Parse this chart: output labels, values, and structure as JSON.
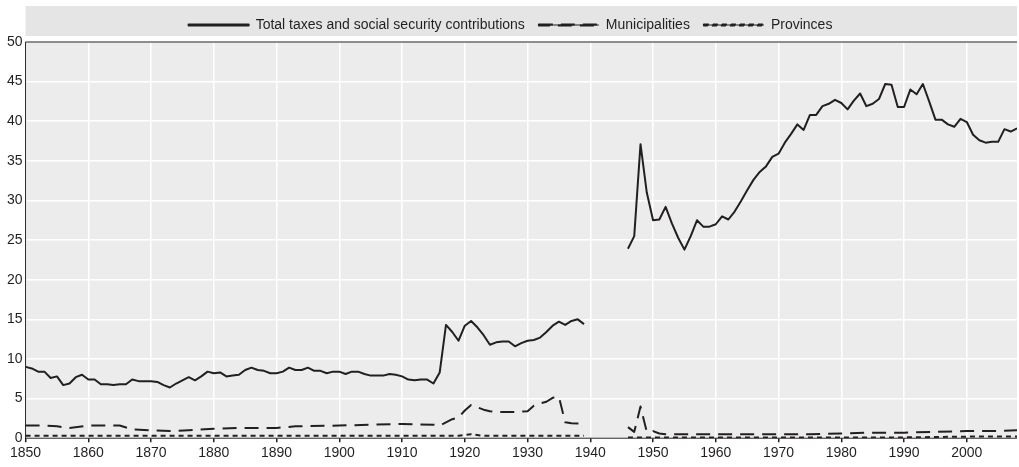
{
  "chart_data": {
    "type": "line",
    "legend": "top",
    "grid": true,
    "xlim": [
      1850,
      2008
    ],
    "xticks": [
      1850,
      1860,
      1870,
      1880,
      1890,
      1900,
      1910,
      1920,
      1930,
      1940,
      1950,
      1960,
      1970,
      1980,
      1990,
      2000
    ],
    "ylim": [
      0,
      50
    ],
    "yticks": [
      0,
      5,
      10,
      15,
      20,
      25,
      30,
      35,
      40,
      45,
      50
    ],
    "x": [
      1850,
      1851,
      1852,
      1853,
      1854,
      1855,
      1856,
      1857,
      1858,
      1859,
      1860,
      1861,
      1862,
      1863,
      1864,
      1865,
      1866,
      1867,
      1868,
      1869,
      1870,
      1871,
      1872,
      1873,
      1874,
      1875,
      1876,
      1877,
      1878,
      1879,
      1880,
      1881,
      1882,
      1883,
      1884,
      1885,
      1886,
      1887,
      1888,
      1889,
      1890,
      1891,
      1892,
      1893,
      1894,
      1895,
      1896,
      1897,
      1898,
      1899,
      1900,
      1901,
      1902,
      1903,
      1904,
      1905,
      1906,
      1907,
      1908,
      1909,
      1910,
      1911,
      1912,
      1913,
      1914,
      1915,
      1916,
      1917,
      1918,
      1919,
      1920,
      1921,
      1922,
      1923,
      1924,
      1925,
      1926,
      1927,
      1928,
      1929,
      1930,
      1931,
      1932,
      1933,
      1934,
      1935,
      1936,
      1937,
      1938,
      1939,
      1940,
      1941,
      1942,
      1943,
      1944,
      1945,
      1946,
      1947,
      1948,
      1949,
      1950,
      1951,
      1952,
      1953,
      1954,
      1955,
      1956,
      1957,
      1958,
      1959,
      1960,
      1961,
      1962,
      1963,
      1964,
      1965,
      1966,
      1967,
      1968,
      1969,
      1970,
      1971,
      1972,
      1973,
      1974,
      1975,
      1976,
      1977,
      1978,
      1979,
      1980,
      1981,
      1982,
      1983,
      1984,
      1985,
      1986,
      1987,
      1988,
      1989,
      1990,
      1991,
      1992,
      1993,
      1994,
      1995,
      1996,
      1997,
      1998,
      1999,
      2000,
      2001,
      2002,
      2003,
      2004,
      2005,
      2006,
      2007,
      2008
    ],
    "series": [
      {
        "name": "Total taxes and social security contributions",
        "color": "#231f20",
        "line_style": "solid",
        "values": [
          9.0,
          8.8,
          8.4,
          8.4,
          7.6,
          7.8,
          6.7,
          6.9,
          7.7,
          8.0,
          7.4,
          7.4,
          6.8,
          6.8,
          6.7,
          6.8,
          6.8,
          7.4,
          7.2,
          7.2,
          7.2,
          7.1,
          6.7,
          6.4,
          6.9,
          7.3,
          7.7,
          7.3,
          7.8,
          8.4,
          8.2,
          8.3,
          7.8,
          7.9,
          8.0,
          8.6,
          8.9,
          8.6,
          8.5,
          8.2,
          8.2,
          8.4,
          8.9,
          8.6,
          8.6,
          8.9,
          8.5,
          8.5,
          8.2,
          8.4,
          8.4,
          8.1,
          8.4,
          8.4,
          8.1,
          7.9,
          7.9,
          7.9,
          8.1,
          8.0,
          7.8,
          7.4,
          7.3,
          7.4,
          7.4,
          6.9,
          8.3,
          14.3,
          13.4,
          12.3,
          14.2,
          14.8,
          14.0,
          13.0,
          11.8,
          12.1,
          12.2,
          12.2,
          11.6,
          12.0,
          12.3,
          12.4,
          12.7,
          13.4,
          14.2,
          14.7,
          14.3,
          14.8,
          15.0,
          14.4,
          null,
          null,
          null,
          null,
          null,
          null,
          23.9,
          25.5,
          37.1,
          31.0,
          27.5,
          27.6,
          29.2,
          27.1,
          25.3,
          23.8,
          25.5,
          27.5,
          26.7,
          26.7,
          27.0,
          28.0,
          27.6,
          28.6,
          29.9,
          31.3,
          32.6,
          33.6,
          34.3,
          35.5,
          35.9,
          37.3,
          38.4,
          39.6,
          38.9,
          40.8,
          40.8,
          41.9,
          42.2,
          42.7,
          42.3,
          41.5,
          42.6,
          43.5,
          41.9,
          42.2,
          42.8,
          44.7,
          44.6,
          41.8,
          41.8,
          44.0,
          43.4,
          44.7,
          42.5,
          40.2,
          40.2,
          39.6,
          39.3,
          40.3,
          39.9,
          38.3,
          37.6,
          37.3,
          37.4,
          37.4,
          39.0,
          38.7,
          39.1
        ]
      },
      {
        "name": "Municipalities",
        "color": "#231f20",
        "line_style": "dashed",
        "x": [
          1850,
          1853,
          1855,
          1857,
          1860,
          1865,
          1867,
          1870,
          1873,
          1876,
          1880,
          1885,
          1890,
          1893,
          1900,
          1905,
          1910,
          1915,
          1916,
          1917,
          1918,
          1919,
          1920,
          1921,
          1922,
          1923,
          1924,
          1925,
          1928,
          1930,
          1931,
          1932,
          1933,
          1934,
          1935,
          1936,
          1937,
          1939,
          1940,
          1941,
          1942,
          1943,
          1944,
          1945,
          1946,
          1947,
          1948,
          1949,
          1950,
          1951,
          1952,
          1955,
          1960,
          1965,
          1970,
          1975,
          1980,
          1985,
          1990,
          1995,
          2000,
          2005,
          2008
        ],
        "values": [
          1.6,
          1.6,
          1.5,
          1.3,
          1.6,
          1.6,
          1.1,
          1.0,
          0.9,
          1.0,
          1.2,
          1.3,
          1.3,
          1.5,
          1.6,
          1.7,
          1.8,
          1.7,
          1.6,
          2.0,
          2.4,
          2.6,
          3.5,
          4.2,
          3.9,
          3.6,
          3.4,
          3.3,
          3.3,
          3.4,
          4.1,
          4.4,
          4.6,
          5.1,
          5.2,
          2.0,
          1.9,
          1.8,
          null,
          null,
          null,
          null,
          null,
          null,
          1.4,
          0.8,
          4.0,
          0.8,
          0.9,
          0.6,
          0.5,
          0.5,
          0.5,
          0.5,
          0.5,
          0.5,
          0.6,
          0.7,
          0.7,
          0.8,
          0.9,
          0.9,
          1.0
        ]
      },
      {
        "name": "Provinces",
        "color": "#231f20",
        "line_style": "dotted",
        "x": [
          1850,
          1860,
          1870,
          1880,
          1890,
          1900,
          1910,
          1919,
          1921,
          1923,
          1930,
          1939,
          1940,
          1945,
          1946,
          1950,
          1955,
          1960,
          1970,
          1980,
          1990,
          2000,
          2008
        ],
        "values": [
          0.3,
          0.3,
          0.3,
          0.3,
          0.3,
          0.3,
          0.3,
          0.3,
          0.5,
          0.3,
          0.3,
          0.3,
          null,
          null,
          0.1,
          0.1,
          0.1,
          0.1,
          0.1,
          0.1,
          0.1,
          0.2,
          0.2
        ]
      }
    ]
  }
}
